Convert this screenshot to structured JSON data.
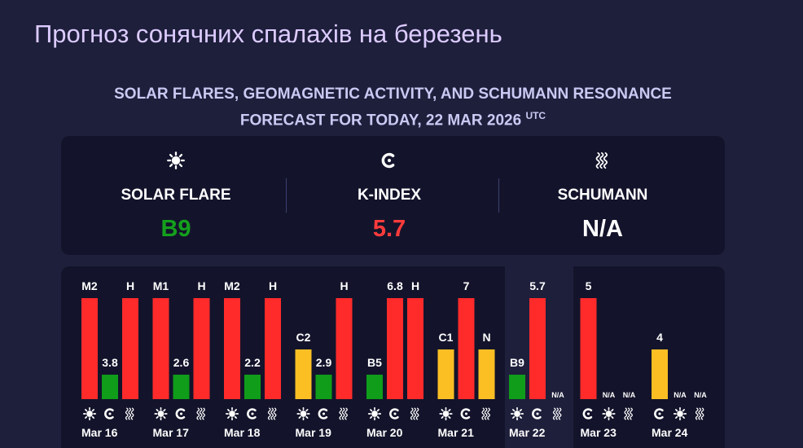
{
  "header": {
    "title": "Прогноз сонячних спалахів на березень",
    "subtitle": "SOLAR FLARES, GEOMAGNETIC ACTIVITY, AND SCHUMANN RESONANCE FORECAST FOR TODAY, 22 MAR 2026",
    "subtitle_sup": "UTC"
  },
  "summary": [
    {
      "icon": "sun",
      "label": "SOLAR FLARE",
      "value": "B9",
      "color": "#14a01c"
    },
    {
      "icon": "magnet",
      "label": "K-INDEX",
      "value": "5.7",
      "color": "#ff3b3b"
    },
    {
      "icon": "wave",
      "label": "SCHUMANN",
      "value": "N/A",
      "color": "#ffffff"
    }
  ],
  "days": [
    {
      "label": "Mar 16",
      "bars": [
        {
          "icon": "sun",
          "text": "M2",
          "color": "#ff2b2b"
        },
        {
          "icon": "magnet",
          "text": "3.8",
          "color": "#0f9d1a"
        },
        {
          "icon": "wave",
          "text": "H",
          "color": "#ff2b2b"
        }
      ]
    },
    {
      "label": "Mar 17",
      "bars": [
        {
          "icon": "sun",
          "text": "M1",
          "color": "#ff2b2b"
        },
        {
          "icon": "magnet",
          "text": "2.6",
          "color": "#0f9d1a"
        },
        {
          "icon": "wave",
          "text": "H",
          "color": "#ff2b2b"
        }
      ]
    },
    {
      "label": "Mar 18",
      "bars": [
        {
          "icon": "sun",
          "text": "M2",
          "color": "#ff2b2b"
        },
        {
          "icon": "magnet",
          "text": "2.2",
          "color": "#0f9d1a"
        },
        {
          "icon": "wave",
          "text": "H",
          "color": "#ff2b2b"
        }
      ]
    },
    {
      "label": "Mar 19",
      "bars": [
        {
          "icon": "sun",
          "text": "C2",
          "color": "#fbbf24"
        },
        {
          "icon": "magnet",
          "text": "2.9",
          "color": "#0f9d1a"
        },
        {
          "icon": "wave",
          "text": "H",
          "color": "#ff2b2b"
        }
      ]
    },
    {
      "label": "Mar 20",
      "bars": [
        {
          "icon": "sun",
          "text": "B5",
          "color": "#0f9d1a"
        },
        {
          "icon": "magnet",
          "text": "6.8",
          "color": "#ff2b2b"
        },
        {
          "icon": "wave",
          "text": "H",
          "color": "#ff2b2b"
        }
      ]
    },
    {
      "label": "Mar 21",
      "bars": [
        {
          "icon": "sun",
          "text": "C1",
          "color": "#fbbf24"
        },
        {
          "icon": "magnet",
          "text": "7",
          "color": "#ff2b2b"
        },
        {
          "icon": "wave",
          "text": "N",
          "color": "#fbbf24"
        }
      ]
    },
    {
      "label": "Mar 22",
      "today": true,
      "bars": [
        {
          "icon": "sun",
          "text": "B9",
          "color": "#0f9d1a"
        },
        {
          "icon": "magnet",
          "text": "5.7",
          "color": "#ff2b2b"
        },
        {
          "icon": "wave",
          "text": "N/A"
        }
      ]
    },
    {
      "label": "Mar 23",
      "bars": [
        {
          "icon": "magnet",
          "text": "5",
          "color": "#ff2b2b"
        },
        {
          "icon": "sun",
          "text": "N/A"
        },
        {
          "icon": "wave",
          "text": "N/A"
        }
      ]
    },
    {
      "label": "Mar 24",
      "bars": [
        {
          "icon": "magnet",
          "text": "4",
          "color": "#fbbf24"
        },
        {
          "icon": "sun",
          "text": "N/A"
        },
        {
          "icon": "wave",
          "text": "N/A"
        }
      ]
    }
  ]
}
